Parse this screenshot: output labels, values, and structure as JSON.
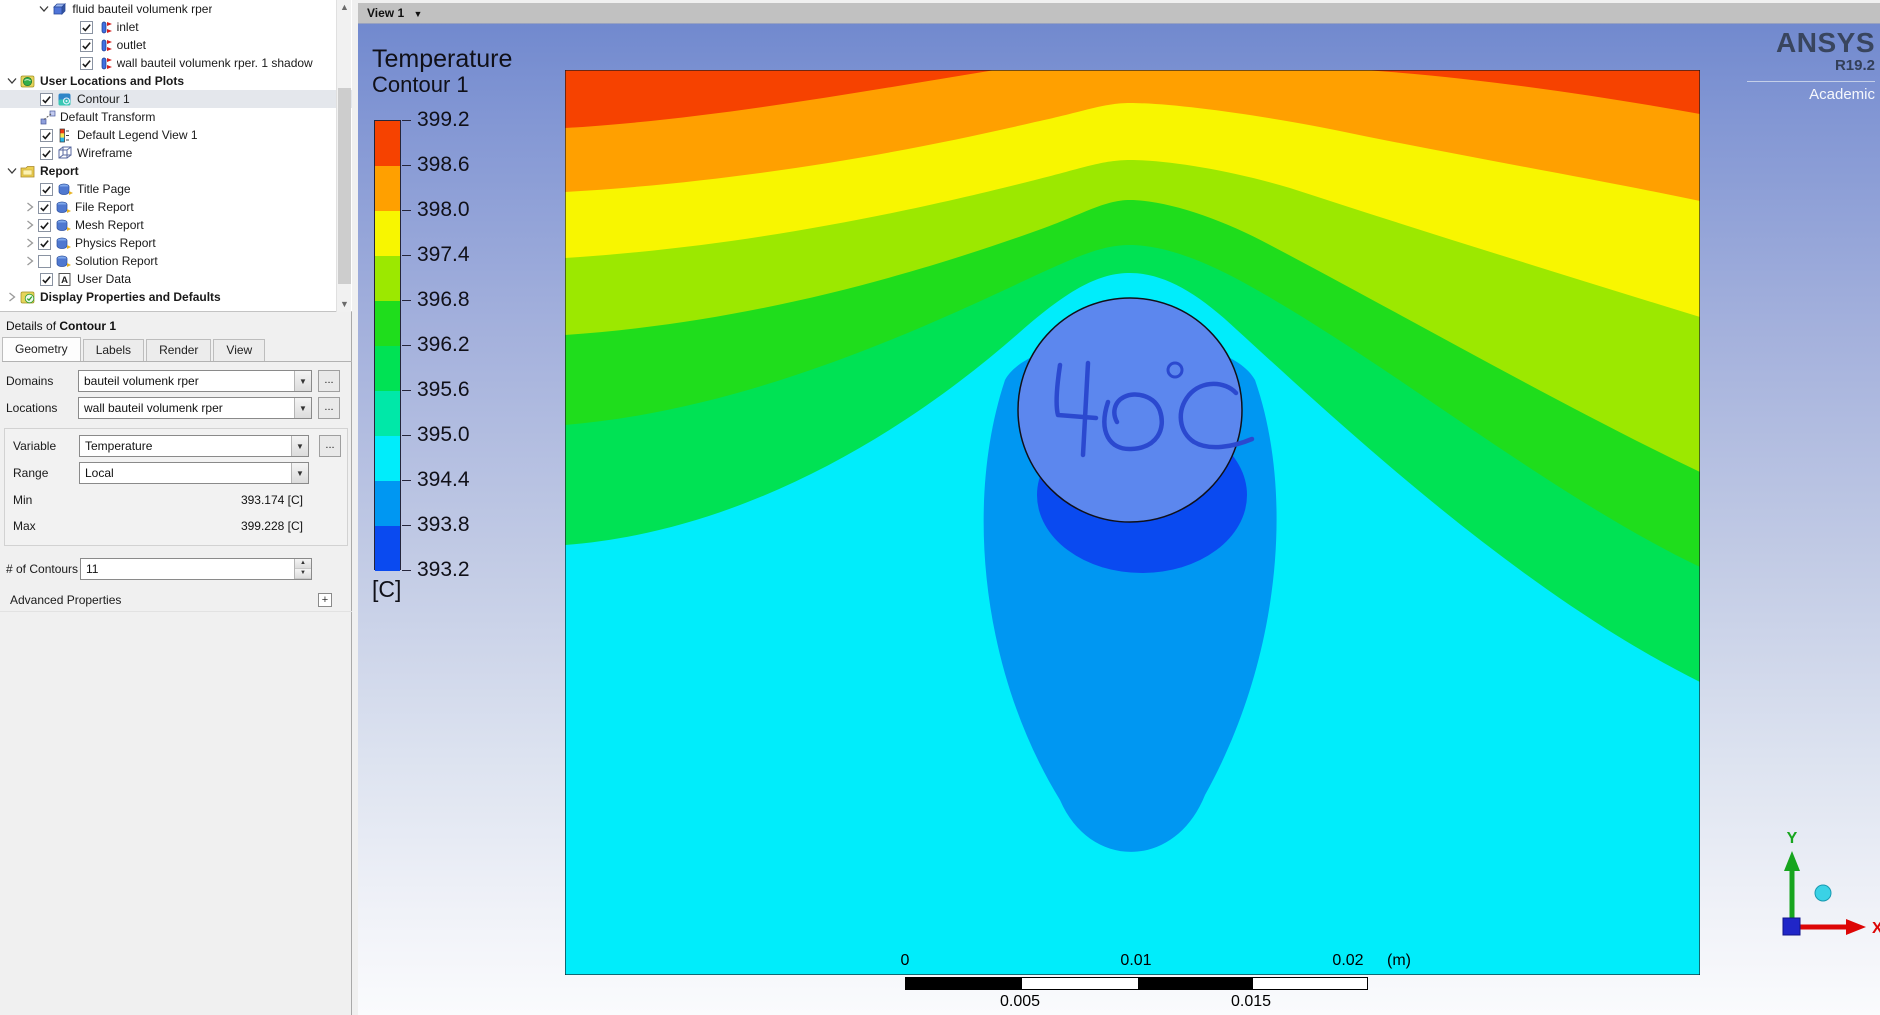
{
  "tree": {
    "items": [
      {
        "label": "fluid bauteil volumenk rper",
        "indent": 1.4,
        "expander": "expanded",
        "icon": "solid-region-icon"
      },
      {
        "label": "inlet",
        "indent": 2.1,
        "checkbox": true,
        "checked": true,
        "icon": "boundary-icon"
      },
      {
        "label": "outlet",
        "indent": 2.1,
        "checkbox": true,
        "checked": true,
        "icon": "boundary-icon"
      },
      {
        "label": "wall bauteil volumenk rper. 1 shadow",
        "indent": 2.1,
        "checkbox": true,
        "checked": true,
        "icon": "boundary-icon"
      },
      {
        "label": "User Locations and Plots",
        "indent": 0,
        "bold": true,
        "expander": "expanded",
        "icon": "user-locations-icon"
      },
      {
        "label": "Contour 1",
        "indent": 1,
        "checkbox": true,
        "checked": true,
        "icon": "contour-icon",
        "selected": true
      },
      {
        "label": "Default Transform",
        "indent": 1,
        "icon": "transform-icon"
      },
      {
        "label": "Default Legend View 1",
        "indent": 1,
        "checkbox": true,
        "checked": true,
        "icon": "legend-icon"
      },
      {
        "label": "Wireframe",
        "indent": 1,
        "checkbox": true,
        "checked": true,
        "icon": "wireframe-icon"
      },
      {
        "label": "Report",
        "indent": 0,
        "bold": true,
        "expander": "expanded",
        "icon": "report-folder-icon"
      },
      {
        "label": "Title Page",
        "indent": 1,
        "checkbox": true,
        "checked": true,
        "icon": "report-page-icon"
      },
      {
        "label": "File Report",
        "indent": 1,
        "expander": "collapsed",
        "checkbox": true,
        "checked": true,
        "icon": "report-page-icon"
      },
      {
        "label": "Mesh Report",
        "indent": 1,
        "expander": "collapsed",
        "checkbox": true,
        "checked": true,
        "icon": "report-page-icon"
      },
      {
        "label": "Physics Report",
        "indent": 1,
        "expander": "collapsed",
        "checkbox": true,
        "checked": true,
        "icon": "report-page-icon"
      },
      {
        "label": "Solution Report",
        "indent": 1,
        "expander": "collapsed",
        "checkbox": true,
        "checked": false,
        "icon": "report-page-icon"
      },
      {
        "label": "User Data",
        "indent": 1,
        "checkbox": true,
        "checked": true,
        "icon": "user-data-icon"
      },
      {
        "label": "Display Properties and Defaults",
        "indent": 0,
        "bold": true,
        "expander": "collapsed",
        "icon": "display-props-icon"
      }
    ]
  },
  "details": {
    "title_prefix": "Details of",
    "title": "Contour 1",
    "tabs": [
      {
        "label": "Geometry",
        "active": true
      },
      {
        "label": "Labels",
        "active": false
      },
      {
        "label": "Render",
        "active": false
      },
      {
        "label": "View",
        "active": false
      }
    ],
    "rows": {
      "domains": {
        "label": "Domains",
        "value": "bauteil volumenk rper",
        "more": "..."
      },
      "locations": {
        "label": "Locations",
        "value": "wall bauteil volumenk rper",
        "more": "..."
      },
      "variable": {
        "label": "Variable",
        "value": "Temperature",
        "more": "..."
      },
      "range": {
        "label": "Range",
        "value": "Local"
      },
      "min": {
        "label": "Min",
        "value": "393.174 [C]"
      },
      "max": {
        "label": "Max",
        "value": "399.228 [C]"
      },
      "contours": {
        "label": "# of Contours",
        "value": "11"
      },
      "advanced": {
        "label": "Advanced Properties",
        "expand_glyph": "+"
      }
    }
  },
  "viewport": {
    "view_tab": "View 1",
    "logo": {
      "brand": "ANSYS",
      "release": "R19.2",
      "edition": "Academic"
    },
    "triad": {
      "x": "X",
      "y": "Y"
    }
  },
  "chart_data": {
    "type": "heatmap",
    "title": "Temperature",
    "subtitle": "Contour 1",
    "unit": "[C]",
    "levels": [
      "399.2",
      "398.6",
      "398.0",
      "397.4",
      "396.8",
      "396.2",
      "395.6",
      "395.0",
      "394.4",
      "393.8",
      "393.2"
    ],
    "band_colors": [
      "#f64200",
      "#ffa000",
      "#f8f600",
      "#9ce800",
      "#1fdd1c",
      "#00e254",
      "#00e8a8",
      "#00edfb",
      "#0097f2",
      "#0a4af0"
    ],
    "min": "393.174 [C]",
    "max": "399.228 [C]",
    "range_mode": "Local",
    "n_contours": 11,
    "annotation": {
      "text": "40 °C",
      "shape": "circle",
      "fill": "#5c87ee",
      "ink": "#2b49cf"
    },
    "scale_bar": {
      "above": [
        "0",
        "0.01",
        "0.02"
      ],
      "unit_label": "(m)",
      "below": [
        "0.005",
        "0.015"
      ]
    }
  }
}
